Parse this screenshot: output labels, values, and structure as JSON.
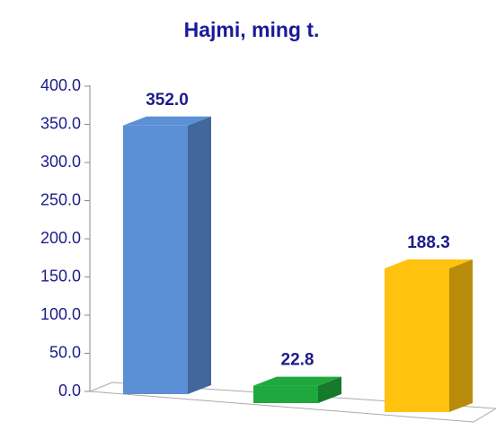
{
  "chart_data": {
    "type": "bar3d",
    "title": "Hajmi, ming t.",
    "categories": [
      null,
      null,
      null
    ],
    "series": [
      {
        "values": [
          352.0,
          22.8,
          188.3
        ],
        "value_labels": [
          "352.0",
          "22.8",
          "188.3"
        ],
        "colors": [
          "#5b8fd6",
          "#1fa83d",
          "#ffc20e"
        ]
      }
    ],
    "ylim": [
      0,
      400
    ],
    "yticks": [
      {
        "value": 0,
        "label": "0.0"
      },
      {
        "value": 50,
        "label": "50.0"
      },
      {
        "value": 100,
        "label": "100.0"
      },
      {
        "value": 150,
        "label": "150.0"
      },
      {
        "value": 200,
        "label": "200.0"
      },
      {
        "value": 250,
        "label": "250.0"
      },
      {
        "value": 300,
        "label": "300.0"
      },
      {
        "value": 350,
        "label": "350.0"
      },
      {
        "value": 400,
        "label": "400.0"
      }
    ],
    "grid": false
  }
}
